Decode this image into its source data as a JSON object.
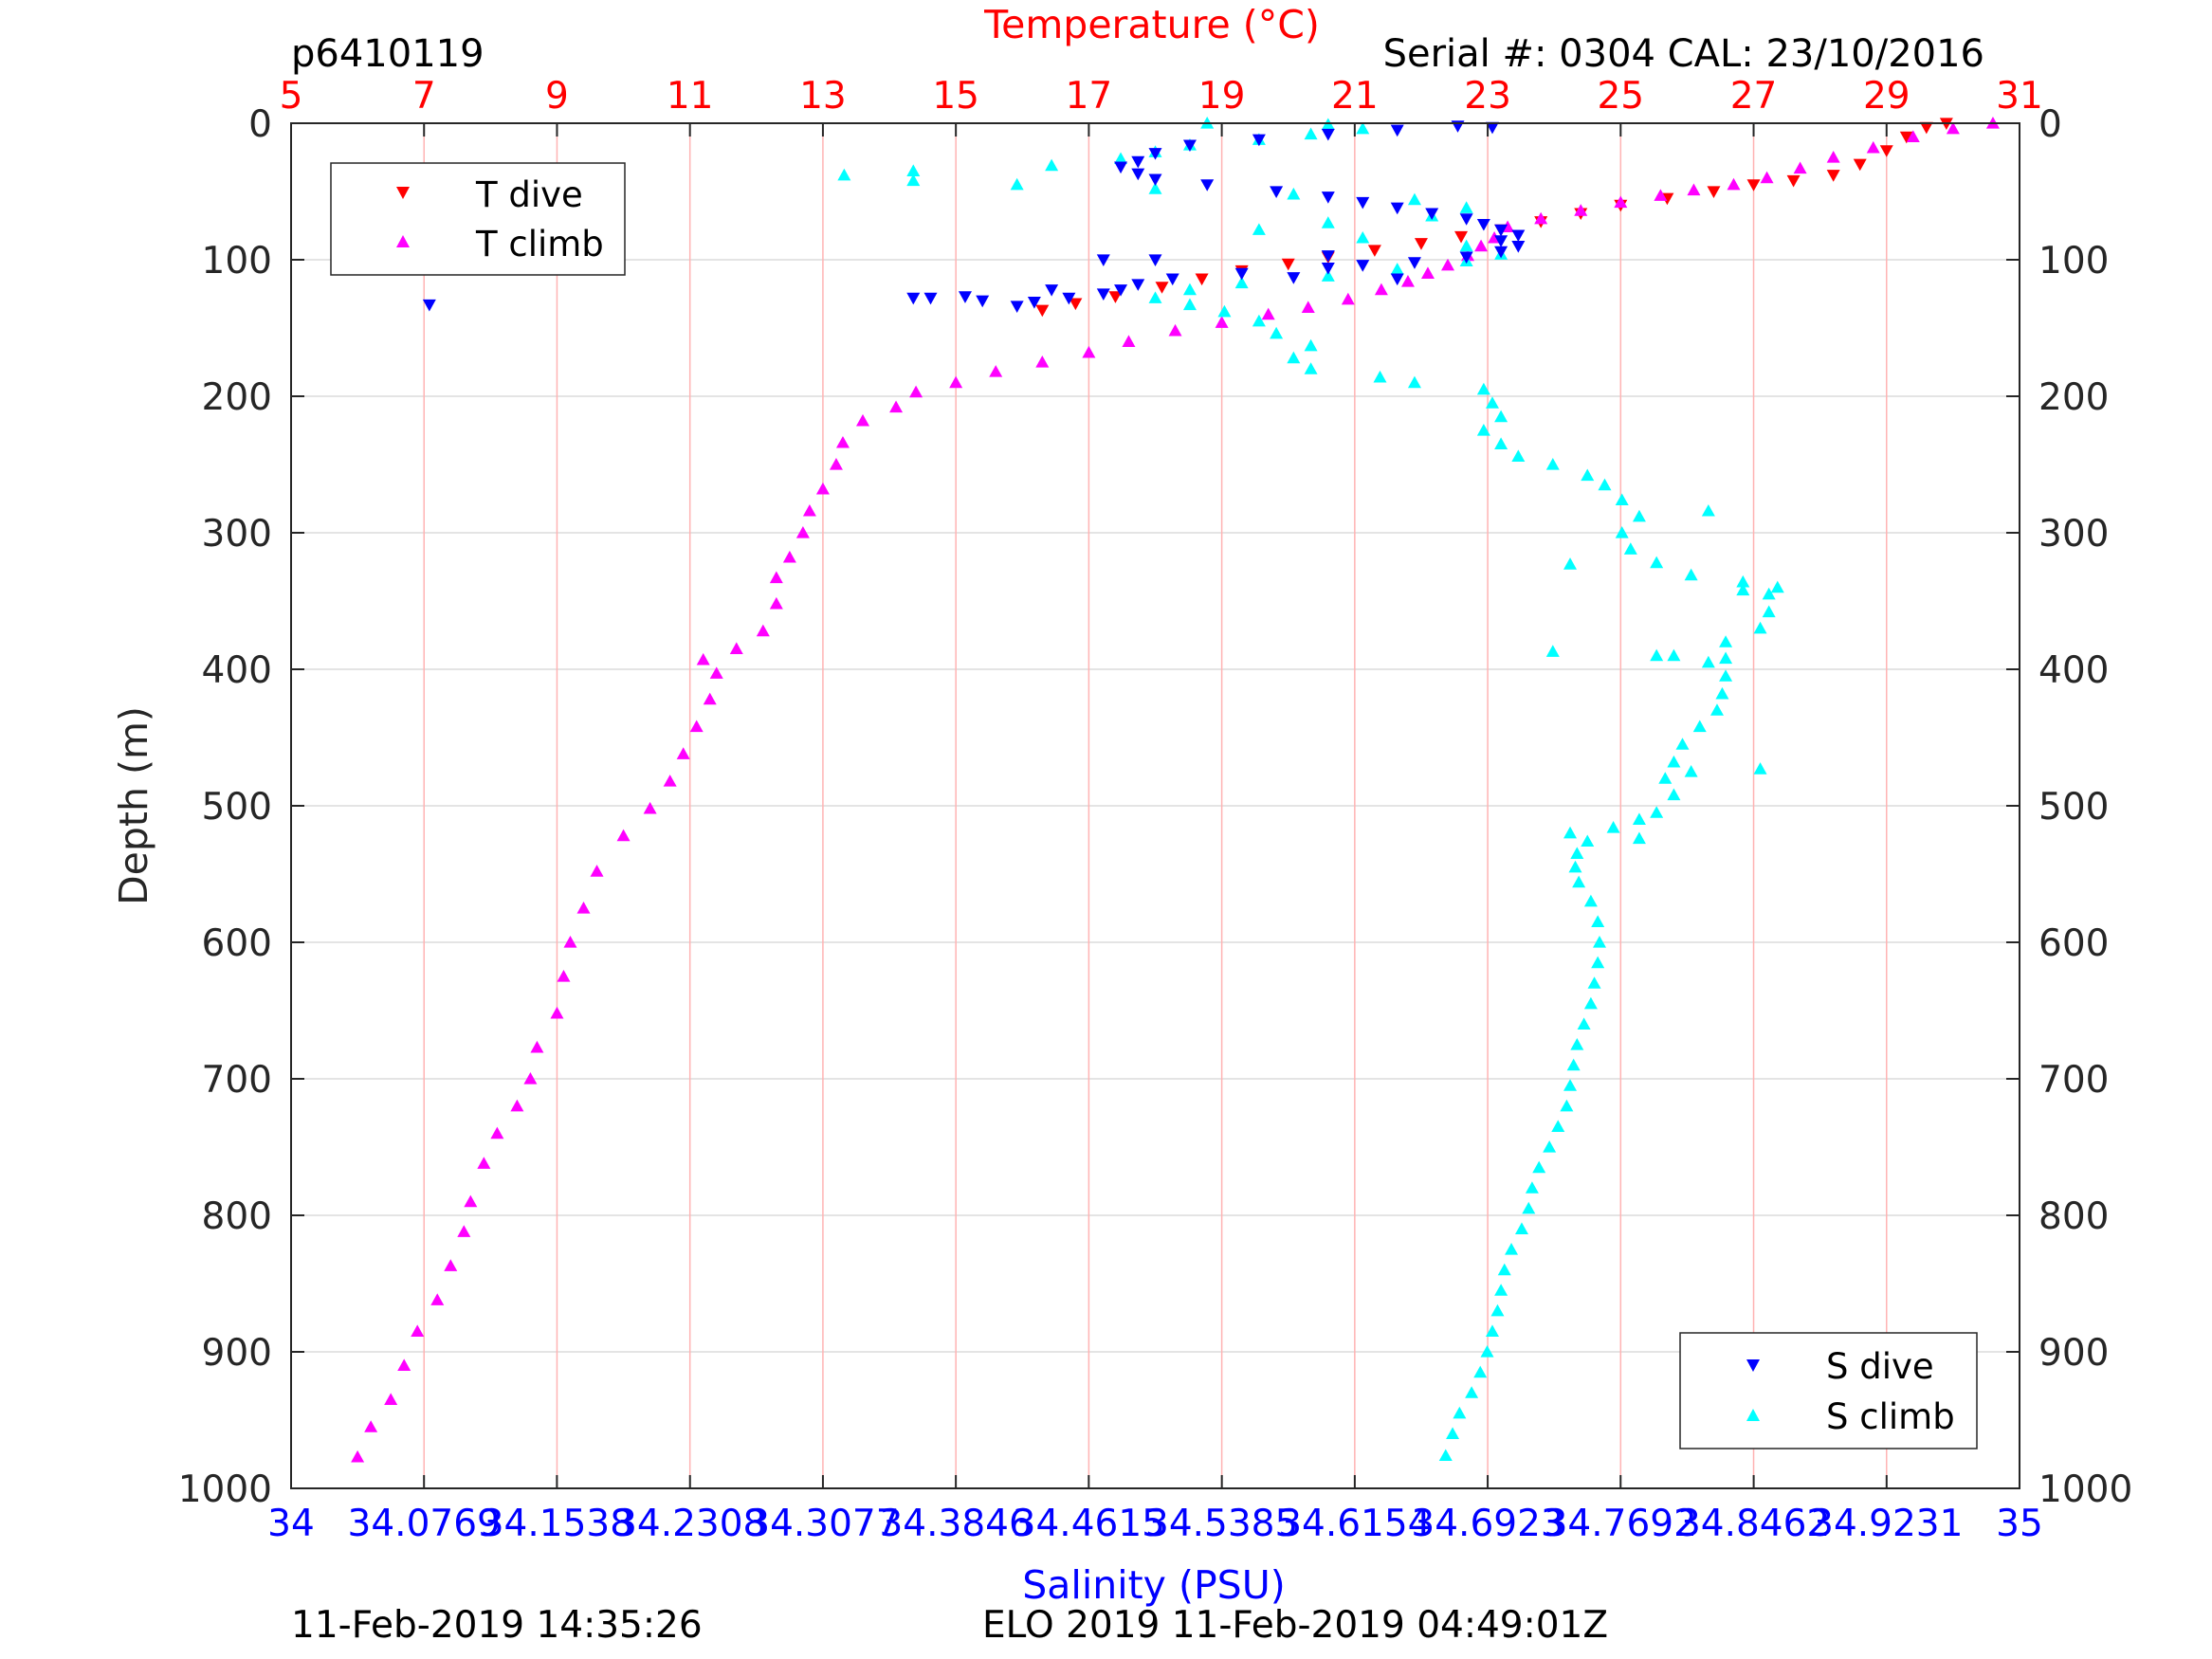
{
  "header": {
    "glider_id": "p6410119",
    "serial": "Serial #: 0304  CAL: 23/10/2016"
  },
  "footer": {
    "left": "11-Feb-2019 14:35:26",
    "right": "ELO 2019 11-Feb-2019 04:49:01Z"
  },
  "colors": {
    "t_dive": "#ff0000",
    "t_climb": "#ff00ff",
    "s_dive": "#0000ff",
    "s_climb": "#00ffff",
    "temperature_axis": "#ff0000",
    "salinity_axis": "#0000ff",
    "temperature_grid": "#ffb3b3",
    "depth_grid": "#dcdcdc"
  },
  "chart_data": {
    "type": "scatter",
    "depth_axis": {
      "label": "Depth (m)",
      "range": [
        0,
        1000
      ],
      "reversed": true,
      "ticks": [
        0,
        100,
        200,
        300,
        400,
        500,
        600,
        700,
        800,
        900,
        1000
      ],
      "grid": true
    },
    "temperature_axis": {
      "label": "Temperature (°C)",
      "position": "top",
      "range": [
        5,
        31
      ],
      "ticks": [
        5,
        7,
        9,
        11,
        13,
        15,
        17,
        19,
        21,
        23,
        25,
        27,
        29,
        31
      ],
      "grid": true
    },
    "salinity_axis": {
      "label": "Salinity (PSU)",
      "position": "bottom",
      "range": [
        34,
        35
      ],
      "ticks": [
        34,
        34.0769,
        34.1538,
        34.2308,
        34.3077,
        34.3846,
        34.4615,
        34.5385,
        34.6154,
        34.6923,
        34.7692,
        34.8462,
        34.9231,
        35
      ],
      "tick_labels": [
        "34",
        "34.0769",
        "34.1538",
        "34.2308",
        "34.3077",
        "34.3846",
        "34.4615",
        "34.5385",
        "34.6154",
        "34.6923",
        "34.7692",
        "34.8462",
        "34.9231",
        "35"
      ]
    },
    "legends": [
      {
        "placement": "top-left",
        "entries": [
          {
            "label": "T dive",
            "marker": "triangle-down",
            "color": "#ff0000"
          },
          {
            "label": "T climb",
            "marker": "triangle-up",
            "color": "#ff00ff"
          }
        ]
      },
      {
        "placement": "bottom-right",
        "entries": [
          {
            "label": "S dive",
            "marker": "triangle-down",
            "color": "#0000ff"
          },
          {
            "label": "S climb",
            "marker": "triangle-up",
            "color": "#00ffff"
          }
        ]
      }
    ],
    "series": [
      {
        "name": "T dive",
        "axis": "temperature",
        "marker": "triangle-down",
        "color": "#ff0000",
        "points": [
          [
            29.9,
            0
          ],
          [
            29.6,
            3
          ],
          [
            29.3,
            10
          ],
          [
            29.0,
            20
          ],
          [
            28.6,
            30
          ],
          [
            28.2,
            38
          ],
          [
            27.6,
            42
          ],
          [
            27.0,
            45
          ],
          [
            26.4,
            50
          ],
          [
            25.7,
            55
          ],
          [
            25.0,
            60
          ],
          [
            24.4,
            66
          ],
          [
            23.8,
            72
          ],
          [
            23.2,
            78
          ],
          [
            22.6,
            83
          ],
          [
            22.0,
            88
          ],
          [
            21.3,
            93
          ],
          [
            20.6,
            98
          ],
          [
            20.0,
            103
          ],
          [
            19.3,
            108
          ],
          [
            18.7,
            114
          ],
          [
            18.1,
            120
          ],
          [
            17.4,
            127
          ],
          [
            16.8,
            132
          ],
          [
            16.3,
            137
          ]
        ]
      },
      {
        "name": "T climb",
        "axis": "temperature",
        "marker": "triangle-up",
        "color": "#ff00ff",
        "points": [
          [
            6.0,
            977
          ],
          [
            6.2,
            955
          ],
          [
            6.5,
            935
          ],
          [
            6.7,
            910
          ],
          [
            6.9,
            885
          ],
          [
            7.2,
            862
          ],
          [
            7.4,
            837
          ],
          [
            7.6,
            812
          ],
          [
            7.7,
            790
          ],
          [
            7.9,
            762
          ],
          [
            8.1,
            740
          ],
          [
            8.4,
            720
          ],
          [
            8.6,
            700
          ],
          [
            8.7,
            677
          ],
          [
            9.0,
            652
          ],
          [
            9.1,
            625
          ],
          [
            9.2,
            600
          ],
          [
            9.4,
            575
          ],
          [
            9.6,
            548
          ],
          [
            10.0,
            522
          ],
          [
            10.4,
            502
          ],
          [
            10.7,
            482
          ],
          [
            10.9,
            462
          ],
          [
            11.1,
            442
          ],
          [
            11.3,
            422
          ],
          [
            11.4,
            403
          ],
          [
            11.2,
            393
          ],
          [
            11.7,
            385
          ],
          [
            12.1,
            372
          ],
          [
            12.3,
            352
          ],
          [
            12.3,
            333
          ],
          [
            12.5,
            318
          ],
          [
            12.7,
            300
          ],
          [
            12.8,
            284
          ],
          [
            13.0,
            268
          ],
          [
            13.2,
            250
          ],
          [
            13.3,
            234
          ],
          [
            13.6,
            218
          ],
          [
            14.1,
            208
          ],
          [
            14.4,
            197
          ],
          [
            15.0,
            190
          ],
          [
            15.6,
            182
          ],
          [
            16.3,
            175
          ],
          [
            17.0,
            168
          ],
          [
            17.6,
            160
          ],
          [
            18.3,
            152
          ],
          [
            19.0,
            146
          ],
          [
            19.7,
            140
          ],
          [
            20.3,
            135
          ],
          [
            20.9,
            129
          ],
          [
            21.4,
            122
          ],
          [
            21.8,
            116
          ],
          [
            22.1,
            110
          ],
          [
            22.4,
            104
          ],
          [
            22.7,
            97
          ],
          [
            22.9,
            90
          ],
          [
            23.1,
            84
          ],
          [
            23.3,
            76
          ],
          [
            23.8,
            70
          ],
          [
            24.4,
            64
          ],
          [
            25.0,
            58
          ],
          [
            25.6,
            53
          ],
          [
            26.1,
            49
          ],
          [
            26.7,
            45
          ],
          [
            27.2,
            40
          ],
          [
            27.7,
            33
          ],
          [
            28.2,
            25
          ],
          [
            28.8,
            18
          ],
          [
            29.4,
            10
          ],
          [
            30.0,
            4
          ],
          [
            30.6,
            0
          ]
        ]
      },
      {
        "name": "S dive",
        "axis": "salinity",
        "marker": "triangle-down",
        "color": "#0000ff",
        "points": [
          [
            34.675,
            2
          ],
          [
            34.64,
            5
          ],
          [
            34.6,
            8
          ],
          [
            34.56,
            12
          ],
          [
            34.52,
            16
          ],
          [
            34.5,
            22
          ],
          [
            34.49,
            28
          ],
          [
            34.48,
            32
          ],
          [
            34.49,
            37
          ],
          [
            34.5,
            41
          ],
          [
            34.53,
            45
          ],
          [
            34.57,
            50
          ],
          [
            34.6,
            54
          ],
          [
            34.62,
            58
          ],
          [
            34.64,
            62
          ],
          [
            34.66,
            66
          ],
          [
            34.68,
            70
          ],
          [
            34.69,
            74
          ],
          [
            34.7,
            78
          ],
          [
            34.71,
            82
          ],
          [
            34.7,
            86
          ],
          [
            34.71,
            90
          ],
          [
            34.7,
            94
          ],
          [
            34.68,
            98
          ],
          [
            34.65,
            102
          ],
          [
            34.6,
            106
          ],
          [
            34.55,
            110
          ],
          [
            34.51,
            114
          ],
          [
            34.49,
            118
          ],
          [
            34.48,
            122
          ],
          [
            34.47,
            125
          ],
          [
            34.45,
            128
          ],
          [
            34.43,
            131
          ],
          [
            34.42,
            134
          ],
          [
            34.6,
            97
          ],
          [
            34.62,
            104
          ],
          [
            34.58,
            113
          ],
          [
            34.64,
            114
          ],
          [
            34.5,
            100
          ],
          [
            34.47,
            100
          ],
          [
            34.44,
            122
          ],
          [
            34.4,
            130
          ],
          [
            34.39,
            127
          ],
          [
            34.37,
            128
          ],
          [
            34.36,
            128
          ],
          [
            34.08,
            133
          ],
          [
            34.695,
            3
          ]
        ]
      },
      {
        "name": "S climb",
        "axis": "salinity",
        "marker": "triangle-up",
        "color": "#00ffff",
        "points": [
          [
            34.668,
            976
          ],
          [
            34.672,
            960
          ],
          [
            34.676,
            945
          ],
          [
            34.683,
            930
          ],
          [
            34.688,
            915
          ],
          [
            34.692,
            900
          ],
          [
            34.695,
            885
          ],
          [
            34.698,
            870
          ],
          [
            34.7,
            855
          ],
          [
            34.702,
            840
          ],
          [
            34.706,
            825
          ],
          [
            34.712,
            810
          ],
          [
            34.716,
            795
          ],
          [
            34.718,
            780
          ],
          [
            34.722,
            765
          ],
          [
            34.728,
            750
          ],
          [
            34.733,
            735
          ],
          [
            34.738,
            720
          ],
          [
            34.74,
            705
          ],
          [
            34.742,
            690
          ],
          [
            34.744,
            675
          ],
          [
            34.748,
            660
          ],
          [
            34.752,
            645
          ],
          [
            34.754,
            630
          ],
          [
            34.756,
            615
          ],
          [
            34.757,
            600
          ],
          [
            34.756,
            585
          ],
          [
            34.752,
            570
          ],
          [
            34.745,
            556
          ],
          [
            34.743,
            545
          ],
          [
            34.744,
            535
          ],
          [
            34.75,
            526
          ],
          [
            34.765,
            516
          ],
          [
            34.78,
            510
          ],
          [
            34.79,
            505
          ],
          [
            34.8,
            492
          ],
          [
            34.795,
            480
          ],
          [
            34.8,
            468
          ],
          [
            34.805,
            455
          ],
          [
            34.815,
            442
          ],
          [
            34.825,
            430
          ],
          [
            34.828,
            418
          ],
          [
            34.83,
            405
          ],
          [
            34.82,
            395
          ],
          [
            34.8,
            390
          ],
          [
            34.83,
            380
          ],
          [
            34.85,
            370
          ],
          [
            34.855,
            358
          ],
          [
            34.855,
            345
          ],
          [
            34.86,
            340
          ],
          [
            34.84,
            336
          ],
          [
            34.81,
            331
          ],
          [
            34.79,
            322
          ],
          [
            34.775,
            312
          ],
          [
            34.77,
            300
          ],
          [
            34.78,
            288
          ],
          [
            34.77,
            276
          ],
          [
            34.76,
            265
          ],
          [
            34.75,
            258
          ],
          [
            34.73,
            250
          ],
          [
            34.71,
            244
          ],
          [
            34.7,
            235
          ],
          [
            34.69,
            225
          ],
          [
            34.7,
            215
          ],
          [
            34.695,
            205
          ],
          [
            34.69,
            195
          ],
          [
            34.65,
            190
          ],
          [
            34.63,
            186
          ],
          [
            34.59,
            180
          ],
          [
            34.58,
            172
          ],
          [
            34.59,
            163
          ],
          [
            34.57,
            154
          ],
          [
            34.56,
            145
          ],
          [
            34.54,
            138
          ],
          [
            34.52,
            133
          ],
          [
            34.5,
            128
          ],
          [
            34.52,
            122
          ],
          [
            34.55,
            117
          ],
          [
            34.6,
            112
          ],
          [
            34.64,
            107
          ],
          [
            34.68,
            101
          ],
          [
            34.7,
            96
          ],
          [
            34.68,
            90
          ],
          [
            34.62,
            84
          ],
          [
            34.56,
            78
          ],
          [
            34.6,
            73
          ],
          [
            34.66,
            68
          ],
          [
            34.68,
            62
          ],
          [
            34.65,
            56
          ],
          [
            34.58,
            52
          ],
          [
            34.5,
            48
          ],
          [
            34.42,
            45
          ],
          [
            34.36,
            42
          ],
          [
            34.32,
            38
          ],
          [
            34.36,
            35
          ],
          [
            34.44,
            31
          ],
          [
            34.48,
            26
          ],
          [
            34.5,
            21
          ],
          [
            34.52,
            16
          ],
          [
            34.56,
            12
          ],
          [
            34.59,
            8
          ],
          [
            34.62,
            4
          ],
          [
            34.6,
            1
          ],
          [
            34.53,
            0
          ],
          [
            34.79,
            390
          ],
          [
            34.83,
            392
          ],
          [
            34.84,
            342
          ],
          [
            34.85,
            473
          ],
          [
            34.81,
            475
          ],
          [
            34.78,
            524
          ],
          [
            34.74,
            520
          ],
          [
            34.82,
            284
          ],
          [
            34.74,
            323
          ],
          [
            34.73,
            387
          ]
        ]
      }
    ]
  }
}
